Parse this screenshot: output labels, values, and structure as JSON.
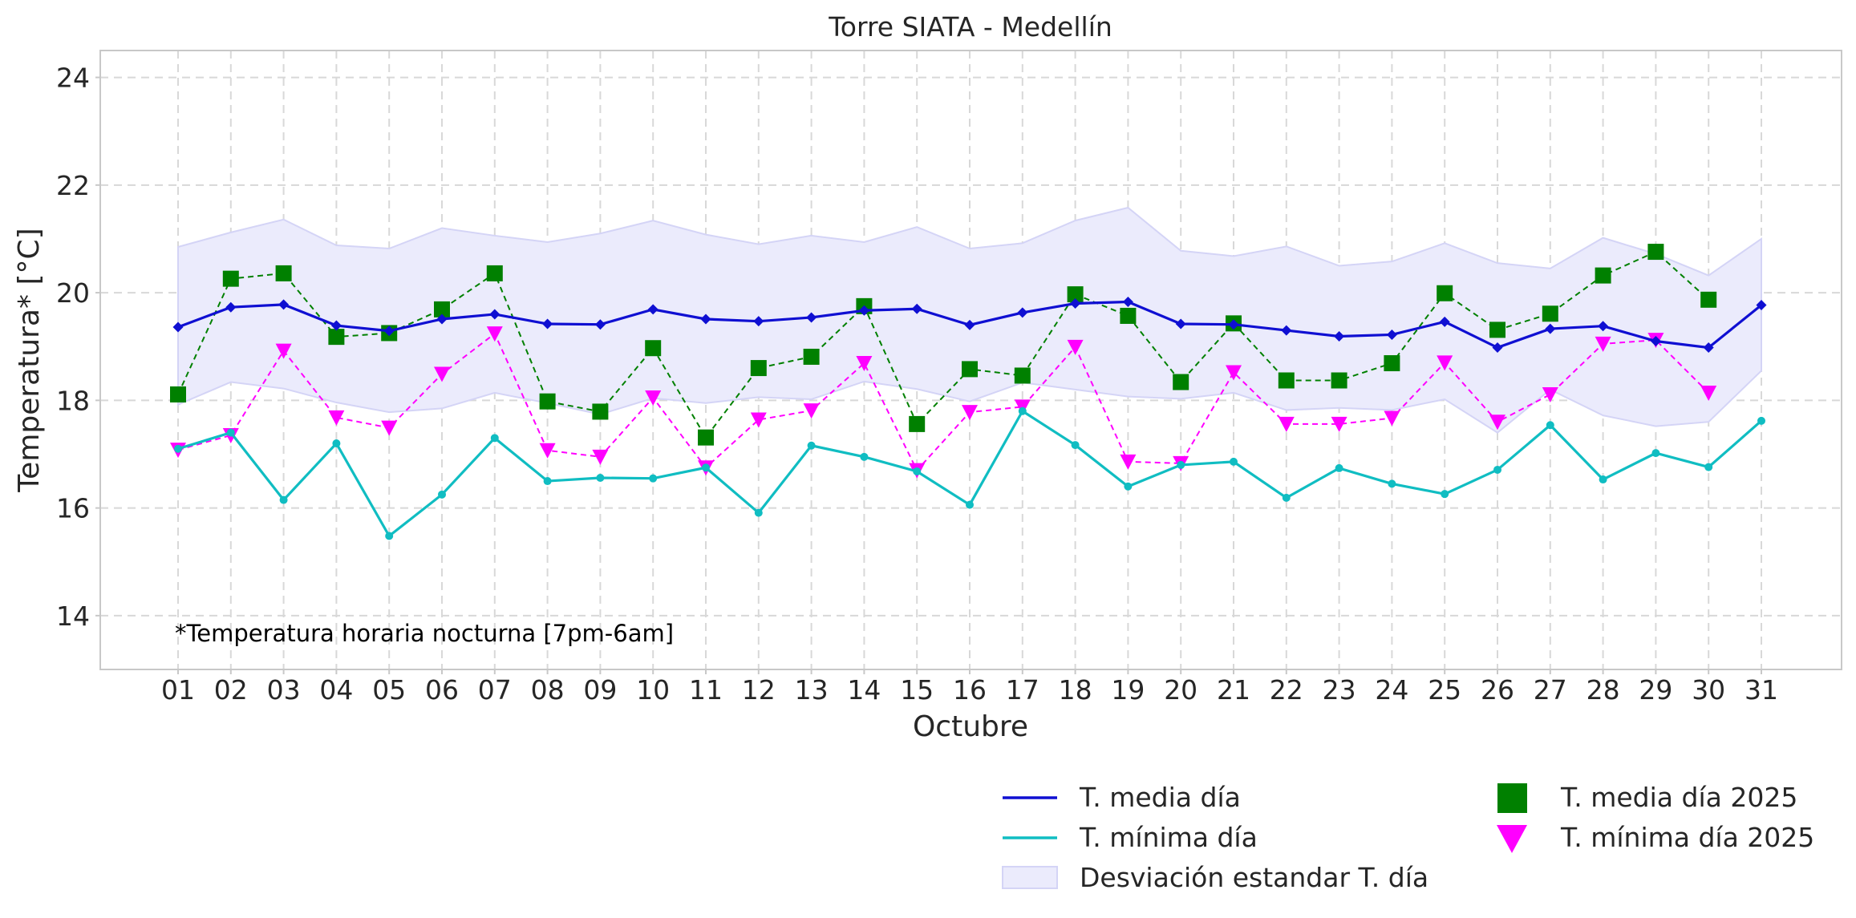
{
  "chart_data": {
    "type": "line",
    "title": "Torre SIATA - Medellín",
    "xlabel": "Octubre",
    "ylabel": "Temperatura* [°C]",
    "annotation": "*Temperatura horaria nocturna [7pm-6am]",
    "ylim": [
      13,
      24.5
    ],
    "yticks": [
      14,
      16,
      18,
      20,
      22,
      24
    ],
    "grid": true,
    "legend_position": "bottom-right",
    "categories": [
      "01",
      "02",
      "03",
      "04",
      "05",
      "06",
      "07",
      "08",
      "09",
      "10",
      "11",
      "12",
      "13",
      "14",
      "15",
      "16",
      "17",
      "18",
      "19",
      "20",
      "21",
      "22",
      "23",
      "24",
      "25",
      "26",
      "27",
      "28",
      "29",
      "30",
      "31"
    ],
    "band": {
      "name": "Desviación estandar T. día",
      "color": "#ebebfc",
      "upper": [
        20.85,
        21.12,
        21.36,
        20.88,
        20.82,
        21.2,
        21.06,
        20.94,
        21.1,
        21.34,
        21.08,
        20.9,
        21.06,
        20.94,
        21.22,
        20.82,
        20.92,
        21.34,
        21.58,
        20.78,
        20.68,
        20.86,
        20.5,
        20.58,
        20.92,
        20.55,
        20.45,
        21.02,
        20.72,
        20.32,
        21.0
      ],
      "lower": [
        17.92,
        18.34,
        18.22,
        17.96,
        17.78,
        17.85,
        18.14,
        17.95,
        17.74,
        18.04,
        17.95,
        18.06,
        18.02,
        18.35,
        18.21,
        17.98,
        18.33,
        18.2,
        18.07,
        18.03,
        18.14,
        17.82,
        17.86,
        17.82,
        18.02,
        17.4,
        18.2,
        17.72,
        17.52,
        17.6,
        18.55
      ]
    },
    "series": [
      {
        "name": "T. media día",
        "color": "#0f0fd2",
        "style": "solid",
        "marker": "diamond",
        "values": [
          19.36,
          19.73,
          19.78,
          19.39,
          19.29,
          19.51,
          19.6,
          19.42,
          19.41,
          19.69,
          19.51,
          19.47,
          19.54,
          19.67,
          19.7,
          19.4,
          19.63,
          19.8,
          19.83,
          19.42,
          19.41,
          19.3,
          19.19,
          19.22,
          19.46,
          18.98,
          19.33,
          19.38,
          19.1,
          18.98,
          19.77
        ]
      },
      {
        "name": "T. mínima día",
        "color": "#10bdc2",
        "style": "solid",
        "marker": "circle",
        "values": [
          17.1,
          17.4,
          16.15,
          17.2,
          15.48,
          16.25,
          17.3,
          16.5,
          16.56,
          16.55,
          16.75,
          15.91,
          17.16,
          16.95,
          16.68,
          16.06,
          17.8,
          17.17,
          16.4,
          16.8,
          16.86,
          16.19,
          16.74,
          16.45,
          16.26,
          16.71,
          17.54,
          16.53,
          17.02,
          16.76,
          17.62
        ]
      },
      {
        "name": "T. media día 2025",
        "color": "#008000",
        "style": "dashed",
        "marker": "square",
        "values": [
          18.11,
          20.26,
          20.36,
          19.18,
          19.25,
          19.69,
          20.36,
          17.98,
          17.79,
          18.97,
          17.31,
          18.6,
          18.81,
          19.75,
          17.56,
          18.58,
          18.46,
          19.97,
          19.57,
          18.34,
          19.43,
          18.37,
          18.37,
          18.69,
          19.99,
          19.31,
          19.61,
          20.32,
          20.76,
          19.87,
          null
        ]
      },
      {
        "name": "T. mínima día 2025",
        "color": "#ff00ff",
        "style": "dashed",
        "marker": "triangle-down",
        "values": [
          17.08,
          17.35,
          18.92,
          17.68,
          17.49,
          18.49,
          19.24,
          17.07,
          16.95,
          18.05,
          16.75,
          17.64,
          17.81,
          18.69,
          16.7,
          17.78,
          17.88,
          18.99,
          16.86,
          16.83,
          18.52,
          17.56,
          17.56,
          17.67,
          18.7,
          17.6,
          18.11,
          19.05,
          19.12,
          18.14,
          null
        ]
      }
    ]
  }
}
